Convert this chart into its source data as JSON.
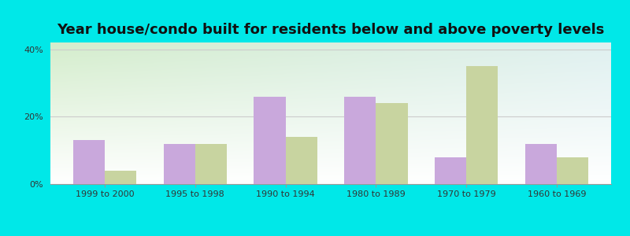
{
  "title": "Year house/condo built for residents below and above poverty levels",
  "categories": [
    "1999 to 2000",
    "1995 to 1998",
    "1990 to 1994",
    "1980 to 1989",
    "1970 to 1979",
    "1960 to 1969"
  ],
  "below_poverty": [
    13,
    12,
    26,
    26,
    8,
    12
  ],
  "above_poverty": [
    4,
    12,
    14,
    24,
    35,
    8
  ],
  "below_color": "#c9a8dc",
  "above_color": "#c8d4a0",
  "ylim": [
    0,
    42
  ],
  "yticks": [
    0,
    20,
    40
  ],
  "ytick_labels": [
    "0%",
    "20%",
    "40%"
  ],
  "background_outer": "#00e8e8",
  "background_inner_topleft": "#d4edcc",
  "background_inner_topright": "#dff0f0",
  "background_inner_bottom": "#ffffff",
  "title_fontsize": 13,
  "bar_width": 0.35,
  "grid_color": "#cccccc",
  "tick_label_fontsize": 8,
  "legend_fontsize": 8.5
}
